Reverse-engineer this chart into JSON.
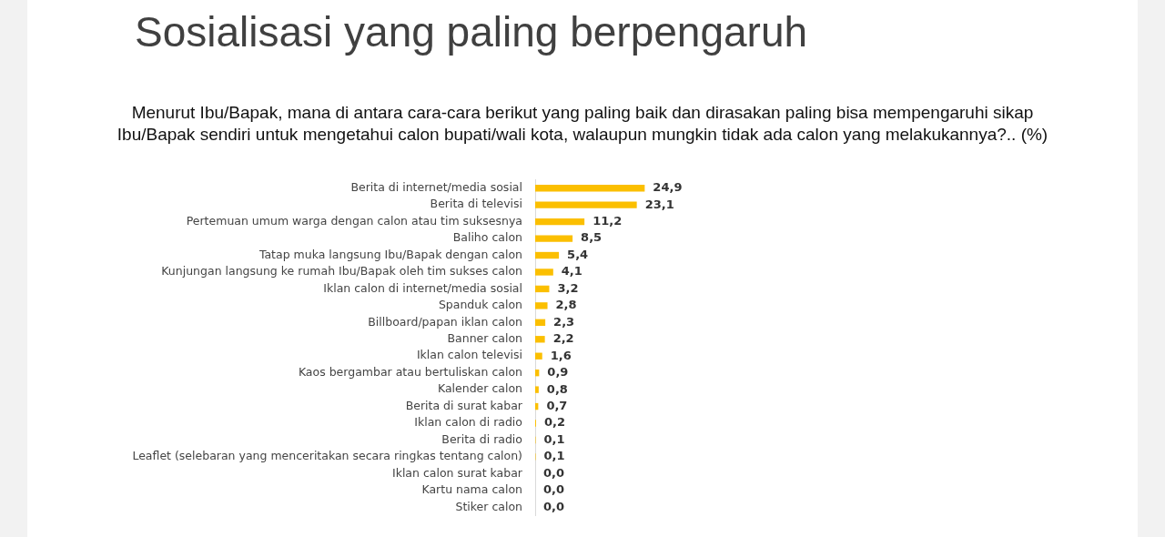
{
  "chart_data": {
    "type": "bar",
    "orientation": "horizontal",
    "title": "Sosialisasi yang paling berpengaruh",
    "subtitle": "Menurut Ibu/Bapak, mana di antara cara-cara berikut yang paling baik dan dirasakan paling bisa mempengaruhi sikap Ibu/Bapak sendiri untuk mengetahui calon bupati/wali kota, walaupun mungkin tidak ada calon yang melakukannya?.. (%)",
    "categories": [
      "Berita di internet/media sosial",
      "Berita di televisi",
      "Pertemuan umum warga dengan calon atau tim suksesnya",
      "Baliho calon",
      "Tatap muka langsung Ibu/Bapak dengan calon",
      "Kunjungan langsung ke rumah Ibu/Bapak oleh tim sukses calon",
      "Iklan calon di internet/media sosial",
      "Spanduk calon",
      "Billboard/papan iklan calon",
      "Banner calon",
      "Iklan calon televisi",
      "Kaos bergambar atau bertuliskan calon",
      "Kalender calon",
      "Berita di surat kabar",
      "Iklan calon di radio",
      "Berita di radio",
      "Leaflet (selebaran yang menceritakan secara ringkas tentang calon)",
      "Iklan calon surat kabar",
      "Kartu nama calon",
      "Stiker calon"
    ],
    "values": [
      24.9,
      23.1,
      11.2,
      8.5,
      5.4,
      4.1,
      3.2,
      2.8,
      2.3,
      2.2,
      1.6,
      0.9,
      0.8,
      0.7,
      0.2,
      0.1,
      0.1,
      0.0,
      0.0,
      0.0
    ],
    "value_labels": [
      "24,9",
      "23,1",
      "11,2",
      "8,5",
      "5,4",
      "4,1",
      "3,2",
      "2,8",
      "2,3",
      "2,2",
      "1,6",
      "0,9",
      "0,8",
      "0,7",
      "0,2",
      "0,1",
      "0,1",
      "0,0",
      "0,0",
      "0,0"
    ],
    "color": "#fbbf00",
    "grid": false,
    "legend": false,
    "tick_labels": "y"
  }
}
